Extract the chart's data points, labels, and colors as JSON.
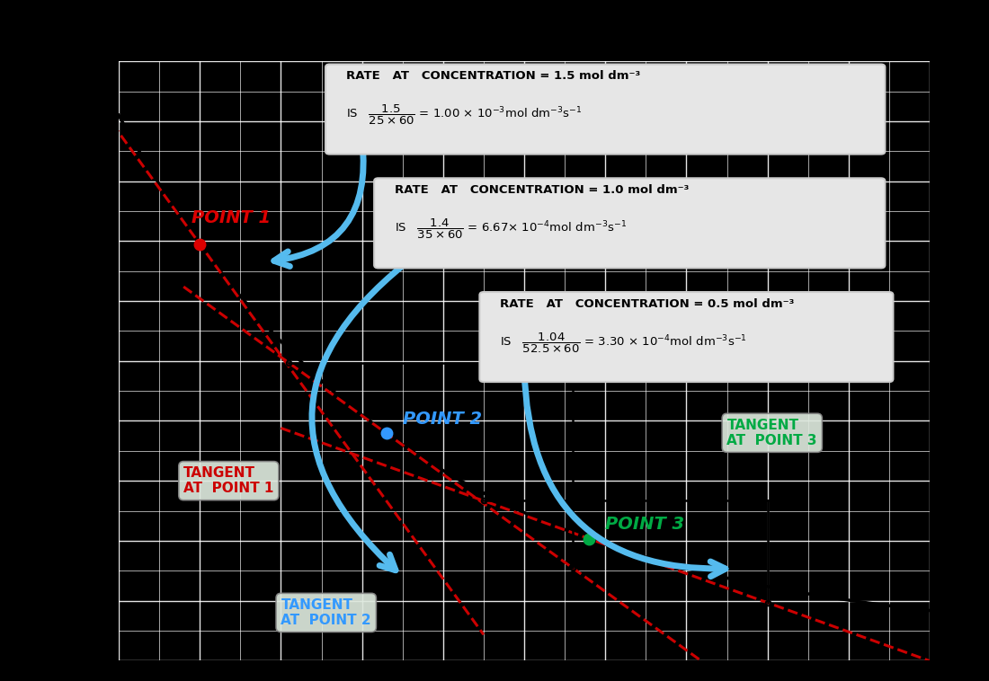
{
  "bg_color": "#000000",
  "grid_color": "#aaaaaa",
  "grid_bg": "#cccccc",
  "curve_color": "#000000",
  "tangent_color": "#cc0000",
  "point1_color": "#dd0000",
  "point2_color": "#3399ff",
  "point3_color": "#00aa44",
  "arrow_color": "#55bbee",
  "box_bg": "#e8e8e8",
  "box_edge": "#aaaaaa",
  "point1_label": "POINT 1",
  "point2_label": "POINT 2",
  "point3_label": "POINT 3",
  "tangent1_label": "TANGENT\nAT  POINT 1",
  "tangent2_label": "TANGENT\nAT  POINT 2",
  "tangent3_label": "TANGENT\nAT  POINT 3",
  "box1_title": "RATE   AT   CONCENTRATION = 1.5 mol dm⁻³",
  "box2_title": "RATE   AT   CONCENTRATION = 1.0 mol dm⁻³",
  "box3_title": "RATE   AT   CONCENTRATION = 0.5 mol dm⁻³"
}
